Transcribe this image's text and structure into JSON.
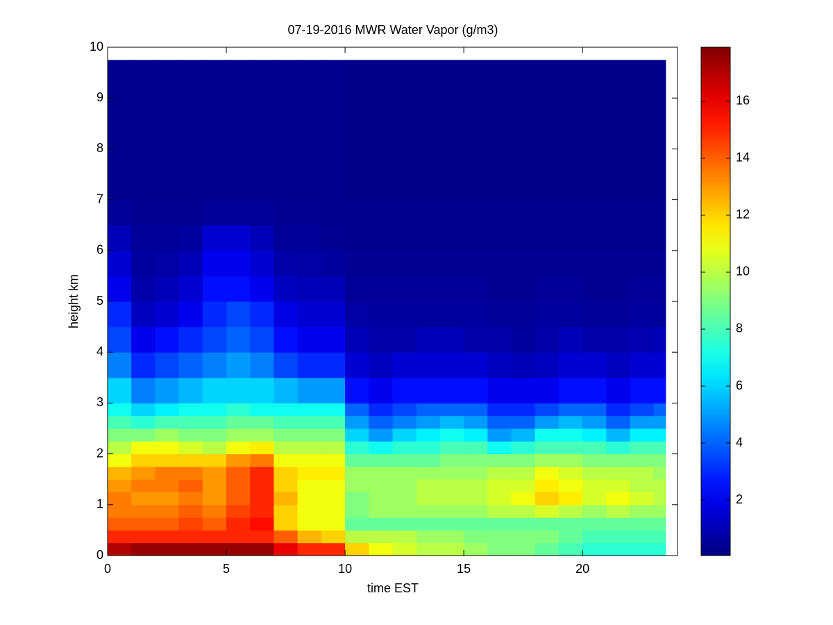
{
  "chart_data": {
    "type": "heatmap",
    "title": "07-19-2016 MWR Water Vapor (g/m3)",
    "xlabel": "time EST",
    "ylabel": "height km",
    "xlim": [
      0,
      24
    ],
    "ylim": [
      0,
      10
    ],
    "xticks": [
      0,
      5,
      10,
      15,
      20
    ],
    "yticks": [
      0,
      1,
      2,
      3,
      4,
      5,
      6,
      7,
      8,
      9,
      10
    ],
    "colormap": "jet",
    "clim": [
      0.05,
      17.9
    ],
    "cticks": [
      2,
      4,
      6,
      8,
      10,
      12,
      14,
      16
    ],
    "x_edges": [
      0,
      1,
      2,
      3,
      4,
      5,
      6,
      7,
      8,
      9,
      10,
      11,
      12,
      13,
      14,
      15,
      16,
      17,
      18,
      19,
      20,
      21,
      22,
      23,
      23.5
    ],
    "y_edges": [
      0,
      0.25,
      0.5,
      0.75,
      1,
      1.25,
      1.5,
      1.75,
      2,
      2.25,
      2.5,
      2.75,
      3,
      3.5,
      4,
      4.5,
      5,
      5.5,
      6,
      6.5,
      7,
      9.75
    ],
    "values": [
      [
        17,
        15,
        14,
        13.5,
        13.5,
        13,
        12.5,
        11,
        10,
        9,
        8,
        7,
        6,
        4.5,
        3.5,
        3,
        2,
        1.5,
        1,
        0.5,
        0.3
      ],
      [
        17.5,
        15,
        14,
        13.5,
        13,
        13.5,
        13,
        12,
        11,
        9,
        7.5,
        6,
        4.5,
        3,
        2,
        1.2,
        0.8,
        0.6,
        0.5,
        0.4,
        0.3
      ],
      [
        17.5,
        15,
        14,
        13.5,
        13,
        13.5,
        13.5,
        12,
        11,
        9.5,
        8,
        6.5,
        5,
        3.5,
        2.5,
        1.5,
        1,
        0.7,
        0.5,
        0.4,
        0.3
      ],
      [
        17.5,
        15,
        14.5,
        14,
        13.5,
        14,
        13.5,
        12,
        10.5,
        9,
        8,
        7,
        5.5,
        4,
        3,
        2,
        1.5,
        1,
        0.6,
        0.4,
        0.3
      ],
      [
        17.5,
        15,
        14,
        13.5,
        13,
        13,
        13,
        12,
        10,
        9,
        8,
        7,
        6,
        4.5,
        3.5,
        3,
        2.5,
        2,
        1.5,
        0.5,
        0.3
      ],
      [
        17.5,
        15,
        15,
        14.5,
        14,
        14,
        14,
        13,
        11,
        9.5,
        8.5,
        7.5,
        6,
        5,
        4,
        3.5,
        2.5,
        2,
        1.5,
        0.5,
        0.3
      ],
      [
        17.5,
        15,
        15.5,
        15,
        15,
        15,
        15,
        13.5,
        11.5,
        9.5,
        8.5,
        7,
        6,
        4.5,
        3.5,
        3,
        2,
        1.5,
        1,
        0.5,
        0.3
      ],
      [
        16,
        14,
        12,
        12,
        12.5,
        12,
        12,
        11,
        10,
        9,
        8,
        7,
        5.5,
        3.5,
        2.5,
        1.8,
        1.2,
        0.8,
        0.5,
        0.4,
        0.3
      ],
      [
        15,
        12.5,
        11,
        11,
        11,
        11,
        11.5,
        11,
        10,
        9,
        8,
        7,
        5,
        3,
        2,
        1.5,
        1,
        0.7,
        0.5,
        0.4,
        0.3
      ],
      [
        15,
        12,
        11,
        11,
        11,
        11,
        11.5,
        11,
        10,
        9,
        8,
        7,
        5,
        3,
        2,
        1.5,
        1,
        0.6,
        0.4,
        0.3,
        0.3
      ],
      [
        12,
        10,
        8.5,
        9,
        9,
        9.5,
        9.5,
        8.5,
        7.5,
        6,
        5,
        4,
        2.5,
        1.5,
        1,
        0.7,
        0.5,
        0.4,
        0.3,
        0.3,
        0.2
      ],
      [
        11,
        10,
        8.5,
        9.5,
        9.5,
        9.5,
        9.5,
        8.5,
        7,
        5,
        4,
        3,
        2,
        1.2,
        0.8,
        0.6,
        0.5,
        0.4,
        0.3,
        0.3,
        0.2
      ],
      [
        10.5,
        10,
        8.5,
        9.5,
        9.5,
        9.5,
        9.5,
        8.5,
        7.5,
        6,
        4.5,
        3.5,
        2.5,
        1.5,
        0.8,
        0.6,
        0.5,
        0.4,
        0.3,
        0.3,
        0.2
      ],
      [
        10,
        9.5,
        8.5,
        9.5,
        10,
        10,
        9.5,
        8.5,
        7.5,
        6.5,
        5,
        4,
        2.5,
        1.5,
        1,
        0.6,
        0.5,
        0.4,
        0.3,
        0.3,
        0.2
      ],
      [
        10,
        9.5,
        8.5,
        9.5,
        10,
        10,
        9.5,
        9,
        8,
        7,
        5.5,
        4,
        2.5,
        1.5,
        1,
        0.6,
        0.5,
        0.4,
        0.3,
        0.3,
        0.2
      ],
      [
        9.5,
        9,
        8.5,
        9.5,
        10,
        10,
        9.5,
        9,
        8,
        6.5,
        5,
        4,
        2.5,
        1.5,
        0.8,
        0.6,
        0.5,
        0.4,
        0.3,
        0.3,
        0.2
      ],
      [
        9,
        9,
        8.5,
        10,
        10.5,
        10.5,
        10,
        9,
        7,
        5,
        4,
        3,
        2,
        1.2,
        0.8,
        0.5,
        0.4,
        0.4,
        0.3,
        0.3,
        0.2
      ],
      [
        9,
        9,
        8.5,
        10,
        11,
        10.5,
        10,
        9,
        7.5,
        5.5,
        4,
        3,
        2,
        1,
        0.6,
        0.5,
        0.4,
        0.4,
        0.3,
        0.3,
        0.2
      ],
      [
        8.5,
        9,
        8.5,
        10.5,
        12,
        11.5,
        11,
        9.5,
        8,
        7,
        5,
        3.5,
        2,
        1.2,
        0.8,
        0.6,
        0.5,
        0.4,
        0.3,
        0.3,
        0.2
      ],
      [
        8,
        8.5,
        8.5,
        10,
        11.5,
        11,
        10.5,
        9.5,
        8,
        7,
        5.5,
        4,
        2.5,
        1.5,
        1,
        0.6,
        0.5,
        0.4,
        0.3,
        0.3,
        0.2
      ],
      [
        7.5,
        8,
        8.5,
        9.5,
        10.5,
        10.5,
        10,
        9,
        8,
        6.5,
        5,
        4,
        2.5,
        1.5,
        0.8,
        0.5,
        0.4,
        0.4,
        0.3,
        0.3,
        0.2
      ],
      [
        7.5,
        8,
        8.5,
        10,
        11,
        10.5,
        10,
        9,
        7.5,
        5.5,
        4,
        3,
        2,
        1.2,
        0.8,
        0.5,
        0.4,
        0.4,
        0.3,
        0.3,
        0.2
      ],
      [
        7.5,
        8,
        8.5,
        9.5,
        10.5,
        10,
        10,
        9,
        8,
        6.5,
        5,
        3.5,
        2.5,
        1.5,
        0.9,
        0.6,
        0.5,
        0.4,
        0.3,
        0.3,
        0.2
      ],
      [
        7.5,
        8,
        8.5,
        9.5,
        10,
        10,
        9.5,
        9,
        8,
        6.5,
        5,
        4,
        2.5,
        1.5,
        1,
        0.6,
        0.5,
        0.4,
        0.3,
        0.3,
        0.2
      ]
    ]
  }
}
